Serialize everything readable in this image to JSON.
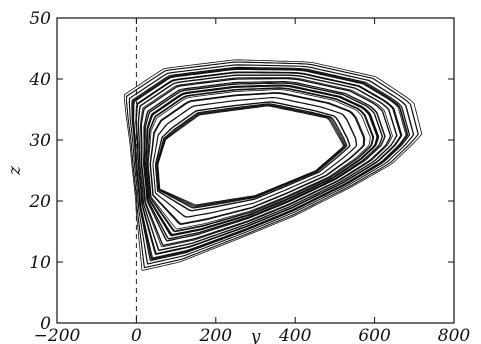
{
  "chart_data": {
    "type": "line",
    "title": "",
    "xlabel": "y",
    "ylabel": "z",
    "xlim": [
      -200,
      800
    ],
    "ylim": [
      0,
      50
    ],
    "xticks": [
      "−200",
      "0",
      "200",
      "400",
      "600",
      "800"
    ],
    "yticks": [
      "0",
      "10",
      "20",
      "30",
      "40",
      "50"
    ],
    "grid": false,
    "reference_line": {
      "x": 0,
      "style": "dashed"
    },
    "series": [
      {
        "description": "strange attractor trajectory (bounded band of nested loops)",
        "outer_boundary": [
          [
            0,
            7.5
          ],
          [
            100,
            9
          ],
          [
            250,
            13
          ],
          [
            400,
            17
          ],
          [
            550,
            22
          ],
          [
            660,
            26
          ],
          [
            740,
            31
          ],
          [
            720,
            36.5
          ],
          [
            620,
            41
          ],
          [
            450,
            43.5
          ],
          [
            250,
            44
          ],
          [
            60,
            42.5
          ],
          [
            -45,
            38
          ],
          [
            -25,
            30
          ],
          [
            -8,
            20
          ],
          [
            0,
            7.5
          ]
        ],
        "inner_boundary": [
          [
            60,
            22
          ],
          [
            150,
            19.5
          ],
          [
            300,
            21
          ],
          [
            450,
            25
          ],
          [
            520,
            29
          ],
          [
            480,
            33.5
          ],
          [
            330,
            35.5
          ],
          [
            160,
            34
          ],
          [
            75,
            30
          ],
          [
            55,
            26
          ],
          [
            60,
            22
          ]
        ],
        "color": "#111111"
      }
    ]
  }
}
